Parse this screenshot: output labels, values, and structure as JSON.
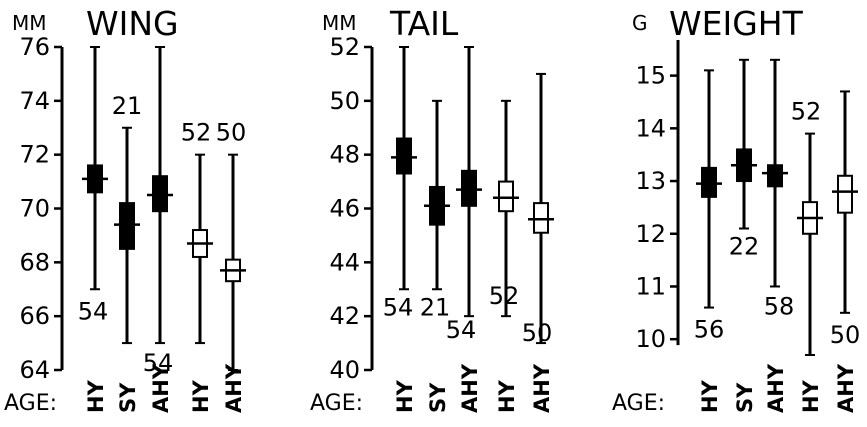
{
  "chart_data": [
    {
      "type": "range-plot",
      "unit": "MM",
      "title": "WING",
      "ylim": [
        64,
        76
      ],
      "yticks": [
        64,
        66,
        68,
        70,
        72,
        74,
        76
      ],
      "categories": [
        "HY",
        "SY",
        "AHY",
        "HY",
        "AHY"
      ],
      "category_prefix": "AGE:",
      "series": [
        {
          "filled": true,
          "min": 67,
          "max": 76,
          "mean": 71.1,
          "box_low": 70.6,
          "box_high": 71.6,
          "n": "54"
        },
        {
          "filled": true,
          "min": 65,
          "max": 73,
          "mean": 69.4,
          "box_low": 68.5,
          "box_high": 70.2,
          "n": "21"
        },
        {
          "filled": true,
          "min": 65,
          "max": 76,
          "mean": 70.5,
          "box_low": 69.9,
          "box_high": 71.2,
          "n": "54"
        },
        {
          "filled": false,
          "min": 65,
          "max": 72,
          "mean": 68.7,
          "box_low": 68.2,
          "box_high": 69.2,
          "n": "52"
        },
        {
          "filled": false,
          "min": 64,
          "max": 72,
          "mean": 67.7,
          "box_low": 67.3,
          "box_high": 68.1,
          "n": "50"
        }
      ]
    },
    {
      "type": "range-plot",
      "unit": "MM",
      "title": "TAIL",
      "ylim": [
        40,
        52
      ],
      "yticks": [
        40,
        42,
        44,
        46,
        48,
        50,
        52
      ],
      "categories": [
        "HY",
        "SY",
        "AHY",
        "HY",
        "AHY"
      ],
      "category_prefix": "AGE:",
      "series": [
        {
          "filled": true,
          "min": 43,
          "max": 52,
          "mean": 47.9,
          "box_low": 47.3,
          "box_high": 48.6,
          "n": "54"
        },
        {
          "filled": true,
          "min": 43,
          "max": 50,
          "mean": 46.1,
          "box_low": 45.4,
          "box_high": 46.8,
          "n": "21"
        },
        {
          "filled": true,
          "min": 42,
          "max": 52,
          "mean": 46.7,
          "box_low": 46.1,
          "box_high": 47.4,
          "n": "54"
        },
        {
          "filled": false,
          "min": 42,
          "max": 50,
          "mean": 46.4,
          "box_low": 45.9,
          "box_high": 47.0,
          "n": "52"
        },
        {
          "filled": false,
          "min": 41,
          "max": 51,
          "mean": 45.6,
          "box_low": 45.1,
          "box_high": 46.2,
          "n": "50"
        }
      ]
    },
    {
      "type": "range-plot",
      "unit": "G",
      "title": "WEIGHT",
      "ylim": [
        9.7,
        15.6
      ],
      "yticks": [
        10,
        11,
        12,
        13,
        14,
        15
      ],
      "categories": [
        "HY",
        "SY",
        "AHY",
        "HY",
        "AHY"
      ],
      "category_prefix": "AGE:",
      "series": [
        {
          "filled": true,
          "min": 10.6,
          "max": 15.1,
          "mean": 12.95,
          "box_low": 12.7,
          "box_high": 13.25,
          "n": "56"
        },
        {
          "filled": true,
          "min": 12.1,
          "max": 15.3,
          "mean": 13.3,
          "box_low": 13.0,
          "box_high": 13.6,
          "n": "22"
        },
        {
          "filled": true,
          "min": 11.0,
          "max": 15.3,
          "mean": 13.15,
          "box_low": 12.9,
          "box_high": 13.3,
          "n": "58"
        },
        {
          "filled": false,
          "min": 9.7,
          "max": 13.9,
          "mean": 12.3,
          "box_low": 12.0,
          "box_high": 12.6,
          "n": "52"
        },
        {
          "filled": false,
          "min": 10.5,
          "max": 14.7,
          "mean": 12.8,
          "box_low": 12.4,
          "box_high": 13.1,
          "n": "50"
        }
      ]
    }
  ]
}
